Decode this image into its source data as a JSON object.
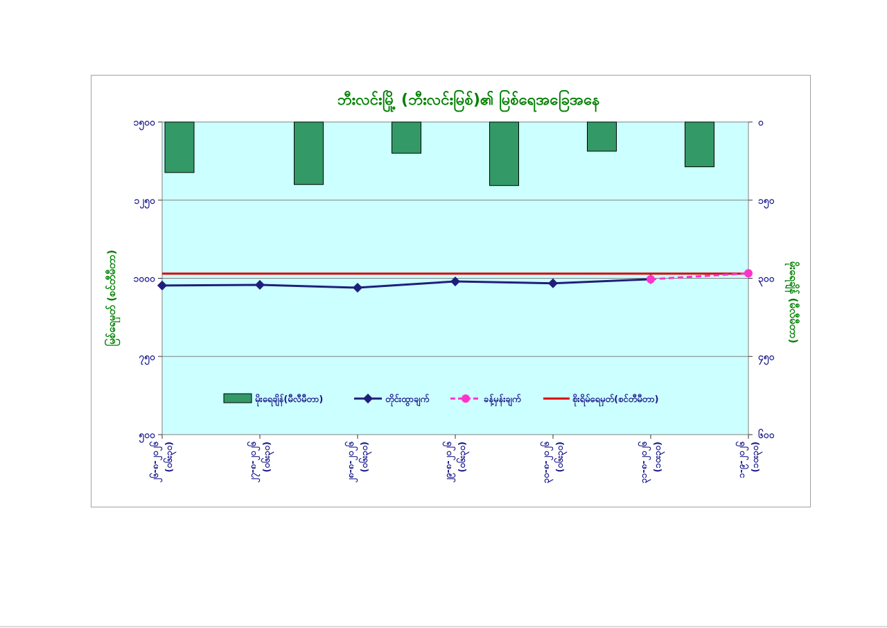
{
  "chart_data": {
    "type": "bar+line",
    "title": "ဘီးလင်းမြို့ (ဘီးလင်းမြစ်)၏ မြစ်ရေအခြေအနေ",
    "ylabel_left": "မြစ်ရေမှတ် (စင်တီမီတာ)",
    "ylabel_right": "မိုးရေချိန် (မီလီမီတာ)",
    "y_left": {
      "ticks": [
        "၁၅၀၀",
        "၁၂၅၀",
        "၁၀၀၀",
        "၇၅၀",
        "၅၀၀"
      ],
      "values": [
        1500,
        1250,
        1000,
        750,
        500
      ],
      "range": [
        500,
        1500
      ]
    },
    "y_right": {
      "ticks": [
        "၀",
        "၁၅၀",
        "၃၀၀",
        "၄၅၀",
        "၆၀၀"
      ],
      "values": [
        0,
        150,
        300,
        450,
        600
      ],
      "range": [
        0,
        600
      ],
      "inverted": true
    },
    "categories": [
      [
        "၂၆-၈-၂၀၂၆",
        "(၀၆း၃၀)"
      ],
      [
        "၂၇-၈-၂၀၂၆",
        "(၀၆း၃၀)"
      ],
      [
        "၂၈-၈-၂၀၂၆",
        "(၀၆း၃၀)"
      ],
      [
        "၂၉-၈-၂၀၂၆",
        "(၀၆း၃၀)"
      ],
      [
        "၃၀-၈-၂၀၂၆",
        "(၀၆း၃၀)"
      ],
      [
        "၃၁-၈-၂၀၂၆",
        "(၁၀း၃၀)"
      ],
      [
        "၁-၉-၂၀၂၆",
        "(၁၀း၃၀)"
      ]
    ],
    "series": [
      {
        "name": "မိုးရေချိန်(မီလီမီတာ)",
        "kind": "bar",
        "axis": "right",
        "color": "#339966",
        "values": [
          97,
          120,
          60,
          122,
          56,
          86,
          null
        ]
      },
      {
        "name": "တိုင်းထွာချက်",
        "kind": "line",
        "axis": "left",
        "color": "#1f1f7a",
        "values": [
          977,
          979,
          970,
          990,
          984,
          997,
          null
        ]
      },
      {
        "name": "ခန့်မှန်းချက်",
        "kind": "dashed-line",
        "axis": "left",
        "color": "#ff33cc",
        "values": [
          null,
          null,
          null,
          null,
          null,
          997,
          1016
        ]
      },
      {
        "name": "စိုးရိမ်ရေမှတ်(စင်တီမီတာ)",
        "kind": "hline",
        "axis": "left",
        "color": "#dd0000",
        "value": 1015
      }
    ],
    "legend_position": "bottom-inside",
    "grid": true
  },
  "colors": {
    "plot_bg": "#ccffff",
    "title": "#008000",
    "left_axis_label": "#008000",
    "right_axis_label": "#008000",
    "tick_labels": "#1a1a8c",
    "category_labels": "#1a1a8c",
    "gridline": "#808080"
  }
}
